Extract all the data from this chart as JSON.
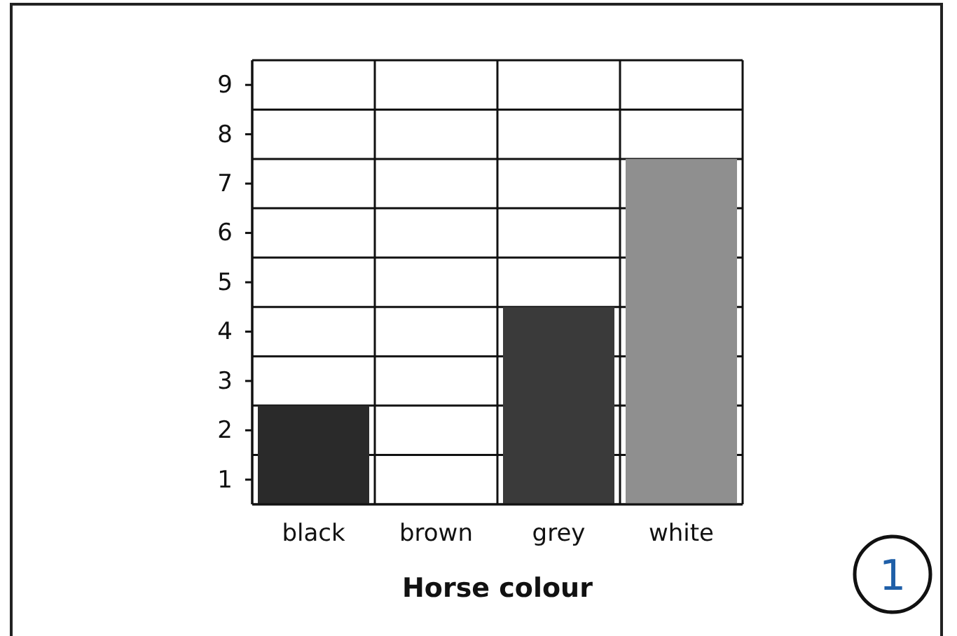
{
  "chart_data": {
    "type": "bar",
    "xlabel": "Horse colour",
    "categories": [
      "black",
      "brown",
      "grey",
      "white"
    ],
    "values": [
      2,
      0,
      4,
      7
    ],
    "base": [
      0.5,
      null,
      0.5,
      0.5
    ],
    "colors": [
      "#2a2a2a",
      "#6b6b6b",
      "#3a3a3a",
      "#8f8f8f"
    ],
    "ylim": [
      0.5,
      9.5
    ],
    "yticks": [
      1,
      2,
      3,
      4,
      5,
      6,
      7,
      8,
      9,
      {
        "value": 0.5,
        "label": null
      },
      {
        "value": 1.5,
        "label": null
      },
      {
        "value": 2.5,
        "label": null
      },
      {
        "value": 3.5,
        "label": null
      },
      {
        "value": 4.5,
        "label": null
      },
      {
        "value": 5.5,
        "label": null
      },
      {
        "value": 6.5,
        "label": null
      },
      {
        "value": 7.5,
        "label": null
      },
      {
        "value": 8.5,
        "label": null
      },
      {
        "value": 9.5,
        "label": null
      }
    ],
    "grid": true,
    "annotations": [
      "1"
    ]
  }
}
